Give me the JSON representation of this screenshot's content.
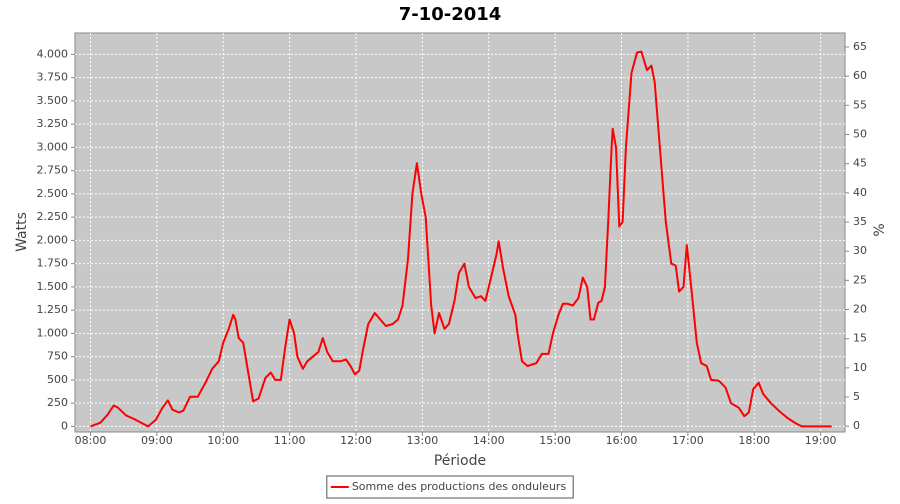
{
  "chart_data": {
    "type": "line",
    "title": "7-10-2014",
    "xlabel": "Période",
    "ylabel": "Watts",
    "y2label": "%",
    "x": [
      "08:00",
      "08:09",
      "08:15",
      "08:21",
      "08:25",
      "08:32",
      "08:41",
      "08:52",
      "08:59",
      "09:05",
      "09:10",
      "09:14",
      "09:20",
      "09:24",
      "09:30",
      "09:37",
      "09:44",
      "09:50",
      "09:56",
      "10:00",
      "10:05",
      "10:09",
      "10:11",
      "10:14",
      "10:18",
      "10:23",
      "10:27",
      "10:32",
      "10:38",
      "10:43",
      "10:47",
      "10:52",
      "10:56",
      "11:00",
      "11:04",
      "11:07",
      "11:12",
      "11:16",
      "11:22",
      "11:26",
      "11:30",
      "11:34",
      "11:39",
      "11:46",
      "11:51",
      "11:55",
      "11:59",
      "12:03",
      "12:06",
      "12:11",
      "12:17",
      "12:22",
      "12:27",
      "12:33",
      "12:38",
      "12:42",
      "12:47",
      "12:51",
      "12:55",
      "12:59",
      "13:03",
      "13:08",
      "13:11",
      "13:15",
      "13:20",
      "13:24",
      "13:29",
      "13:33",
      "13:38",
      "13:42",
      "13:48",
      "13:53",
      "13:57",
      "14:02",
      "14:07",
      "14:09",
      "14:13",
      "14:18",
      "14:24",
      "14:26",
      "14:30",
      "14:35",
      "14:43",
      "14:48",
      "14:54",
      "14:58",
      "15:03",
      "15:07",
      "15:11",
      "15:16",
      "15:21",
      "15:25",
      "15:29",
      "15:32",
      "15:35",
      "15:39",
      "15:42",
      "15:45",
      "15:48",
      "15:51",
      "15:52",
      "15:55",
      "15:58",
      "16:01",
      "16:04",
      "16:09",
      "16:14",
      "16:18",
      "16:20",
      "16:23",
      "16:27",
      "16:30",
      "16:34",
      "16:40",
      "16:45",
      "16:49",
      "16:52",
      "16:56",
      "16:59",
      "17:03",
      "17:08",
      "17:12",
      "17:17",
      "17:21",
      "17:28",
      "17:34",
      "17:39",
      "17:46",
      "17:51",
      "17:55",
      "17:59",
      "18:04",
      "18:08",
      "18:15",
      "18:23",
      "18:30",
      "18:38",
      "18:43",
      "19:10"
    ],
    "series": [
      {
        "name": "Somme des productions des onduleurs",
        "color": "#ff0000",
        "values": [
          0,
          40,
          120,
          225,
          200,
          120,
          70,
          0,
          70,
          200,
          280,
          180,
          150,
          170,
          320,
          320,
          470,
          620,
          700,
          900,
          1050,
          1200,
          1150,
          950,
          900,
          550,
          270,
          300,
          520,
          580,
          500,
          500,
          850,
          1150,
          1000,
          750,
          620,
          700,
          760,
          800,
          950,
          800,
          700,
          700,
          720,
          650,
          560,
          600,
          800,
          1100,
          1220,
          1150,
          1080,
          1100,
          1150,
          1300,
          1800,
          2500,
          2830,
          2500,
          2250,
          1300,
          1000,
          1220,
          1050,
          1100,
          1350,
          1650,
          1750,
          1500,
          1380,
          1400,
          1350,
          1600,
          1850,
          1990,
          1700,
          1400,
          1200,
          1000,
          700,
          650,
          680,
          780,
          780,
          1000,
          1200,
          1320,
          1320,
          1300,
          1380,
          1600,
          1500,
          1150,
          1150,
          1330,
          1350,
          1500,
          2200,
          3000,
          3200,
          3000,
          2150,
          2200,
          3000,
          3800,
          4020,
          4030,
          3950,
          3830,
          3880,
          3700,
          3100,
          2200,
          1750,
          1730,
          1450,
          1500,
          1950,
          1500,
          900,
          680,
          650,
          500,
          490,
          420,
          250,
          200,
          110,
          150,
          400,
          470,
          350,
          250,
          160,
          90,
          30,
          0,
          0
        ]
      }
    ],
    "xlim": [
      "07:46",
      "19:22"
    ],
    "xticks": [
      "08:00",
      "09:00",
      "10:00",
      "11:00",
      "12:00",
      "13:00",
      "14:00",
      "15:00",
      "16:00",
      "17:00",
      "18:00",
      "19:00"
    ],
    "ylim": [
      -60,
      4230
    ],
    "yticks": [
      0,
      250,
      500,
      750,
      {
        "value": 1000,
        "label": "1.000"
      },
      {
        "value": 1250,
        "label": "1.250"
      },
      {
        "value": 1500,
        "label": "1.500"
      },
      {
        "value": 1750,
        "label": "1.750"
      },
      {
        "value": 2000,
        "label": "2.000"
      },
      {
        "value": 2250,
        "label": "2.250"
      },
      {
        "value": 2500,
        "label": "2.500"
      },
      {
        "value": 2750,
        "label": "2.750"
      },
      {
        "value": 3000,
        "label": "3.000"
      },
      {
        "value": 3250,
        "label": "3.250"
      },
      {
        "value": 3500,
        "label": "3.500"
      },
      {
        "value": 3750,
        "label": "3.750"
      },
      {
        "value": 4000,
        "label": "4.000"
      }
    ],
    "y2lim": [
      -1,
      67.4
    ],
    "y2ticks": [
      0,
      5,
      10,
      15,
      20,
      25,
      30,
      35,
      40,
      45,
      50,
      55,
      60,
      65
    ],
    "grid": true,
    "legend": "bottom"
  }
}
